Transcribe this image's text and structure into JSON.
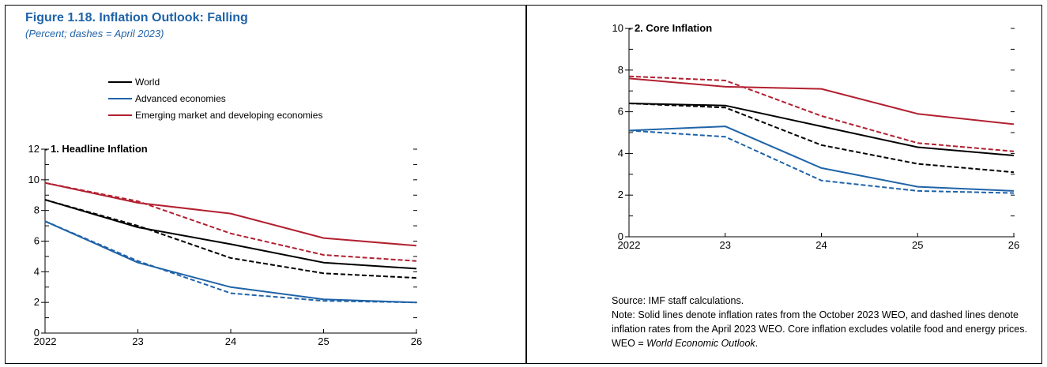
{
  "figure": {
    "title": "Figure 1.18.  Inflation Outlook: Falling",
    "subtitle": "(Percent; dashes = April 2023)"
  },
  "legend": [
    {
      "label": "World",
      "color": "#000000"
    },
    {
      "label": "Advanced economies",
      "color": "#1f63a8"
    },
    {
      "label": "Emerging market and developing economies",
      "color": "#b22030"
    }
  ],
  "colors": {
    "world": "#000000",
    "advanced": "#1f63a8",
    "emerging": "#b22030"
  },
  "chart_data": [
    {
      "type": "line",
      "title": "1. Headline Inflation",
      "top_tick_label": "12",
      "x": [
        "2022",
        "23",
        "24",
        "25",
        "26"
      ],
      "yticks": [
        "0",
        "2",
        "4",
        "6",
        "8",
        "10"
      ],
      "ylim": [
        0,
        12
      ],
      "series": [
        {
          "name": "World",
          "color": "#000000",
          "dashed": false,
          "values": [
            8.7,
            6.9,
            5.8,
            4.6,
            4.2
          ]
        },
        {
          "name": "World",
          "color": "#000000",
          "dashed": true,
          "values": [
            8.7,
            7.0,
            4.9,
            3.9,
            3.6
          ]
        },
        {
          "name": "Advanced economies",
          "color": "#1f63a8",
          "dashed": false,
          "values": [
            7.3,
            4.6,
            3.0,
            2.2,
            2.0
          ]
        },
        {
          "name": "Advanced economies",
          "color": "#1f63a8",
          "dashed": true,
          "values": [
            7.3,
            4.7,
            2.6,
            2.1,
            2.0
          ]
        },
        {
          "name": "Emerging market and developing economies",
          "color": "#b22030",
          "dashed": false,
          "values": [
            9.8,
            8.5,
            7.8,
            6.2,
            5.7
          ]
        },
        {
          "name": "Emerging market and developing economies",
          "color": "#b22030",
          "dashed": true,
          "values": [
            9.8,
            8.6,
            6.5,
            5.1,
            4.7
          ]
        }
      ]
    },
    {
      "type": "line",
      "title": "2. Core Inflation",
      "top_tick_label": "10",
      "x": [
        "2022",
        "23",
        "24",
        "25",
        "26"
      ],
      "yticks": [
        "0",
        "2",
        "4",
        "6",
        "8"
      ],
      "ylim": [
        0,
        10
      ],
      "series": [
        {
          "name": "World",
          "color": "#000000",
          "dashed": false,
          "values": [
            6.4,
            6.3,
            5.3,
            4.3,
            3.9
          ]
        },
        {
          "name": "World",
          "color": "#000000",
          "dashed": true,
          "values": [
            6.4,
            6.2,
            4.4,
            3.5,
            3.1
          ]
        },
        {
          "name": "Advanced economies",
          "color": "#1f63a8",
          "dashed": false,
          "values": [
            5.1,
            5.3,
            3.3,
            2.4,
            2.2
          ]
        },
        {
          "name": "Advanced economies",
          "color": "#1f63a8",
          "dashed": true,
          "values": [
            5.1,
            4.8,
            2.7,
            2.2,
            2.1
          ]
        },
        {
          "name": "Emerging market and developing economies",
          "color": "#b22030",
          "dashed": false,
          "values": [
            7.6,
            7.2,
            7.1,
            5.9,
            5.4
          ]
        },
        {
          "name": "Emerging market and developing economies",
          "color": "#b22030",
          "dashed": true,
          "values": [
            7.7,
            7.5,
            5.8,
            4.5,
            4.1
          ]
        }
      ]
    }
  ],
  "notes": {
    "source": "Source: IMF staff calculations.",
    "note": "Note: Solid lines denote inflation rates from the October 2023 WEO, and dashed lines denote inflation rates from the April 2023 WEO. Core inflation excludes volatile food and energy prices. WEO = ",
    "note_italic": "World Economic Outlook",
    "note_end": "."
  }
}
